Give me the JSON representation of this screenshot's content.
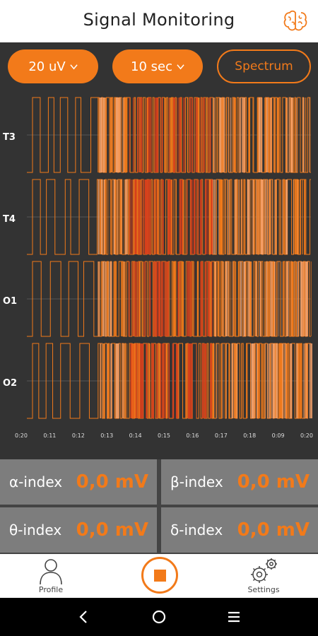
{
  "header": {
    "title": "Signal Monitoring",
    "brain_icon": "brain-icon"
  },
  "controls": {
    "amplitude": "20 uV",
    "timebase": "10 sec",
    "spectrum_label": "Spectrum"
  },
  "plot": {
    "channels": [
      "T3",
      "T4",
      "O1",
      "O2"
    ],
    "time_ticks": [
      "0:20",
      "0:11",
      "0:12",
      "0:13",
      "0:14",
      "0:15",
      "0:16",
      "0:17",
      "0:18",
      "0:09",
      "0:20"
    ],
    "colors": {
      "accent": "#f27a1a",
      "light": "#f5a26b",
      "deep": "#d8401c"
    }
  },
  "metrics": [
    {
      "name": "α-index",
      "value": "0,0 mV"
    },
    {
      "name": "β-index",
      "value": "0,0 mV"
    },
    {
      "name": "θ-index",
      "value": "0,0 mV"
    },
    {
      "name": "δ-index",
      "value": "0,0 mV"
    }
  ],
  "nav": {
    "profile_label": "Profile",
    "settings_label": "Settings"
  }
}
